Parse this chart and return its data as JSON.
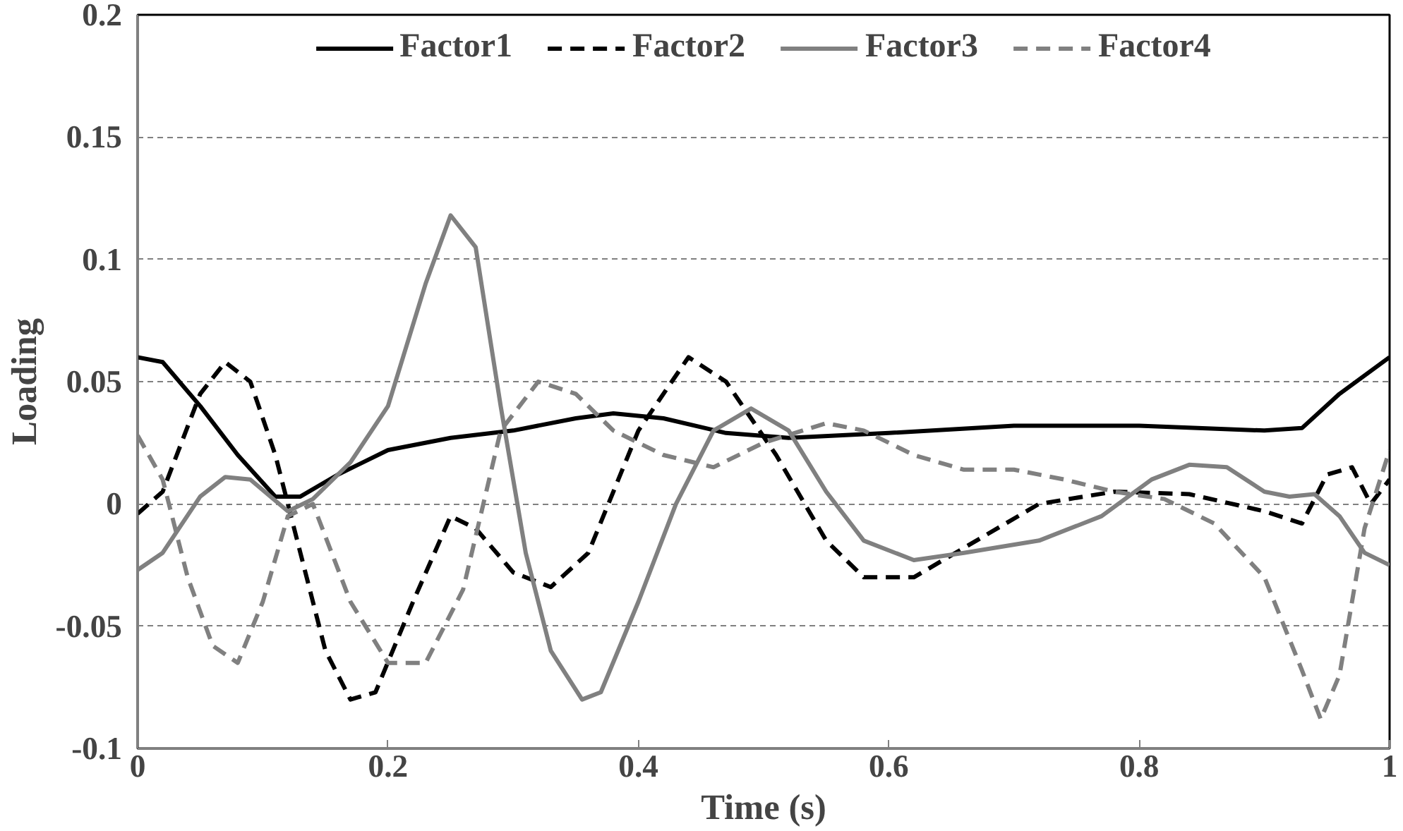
{
  "chart_data": {
    "type": "line",
    "xlabel": "Time (s)",
    "ylabel": "Loading",
    "xlim": [
      0,
      1
    ],
    "ylim": [
      -0.1,
      0.2
    ],
    "xticks": [
      0,
      0.2,
      0.4,
      0.6,
      0.8,
      1
    ],
    "yticks": [
      -0.1,
      -0.05,
      0,
      0.05,
      0.1,
      0.15,
      0.2
    ],
    "grid": "y",
    "legend": "top",
    "marker": "none",
    "series": [
      {
        "name": "Factor1",
        "color": "#000000",
        "line_style": "solid",
        "x": [
          0,
          0.02,
          0.05,
          0.08,
          0.11,
          0.13,
          0.16,
          0.2,
          0.25,
          0.3,
          0.35,
          0.38,
          0.42,
          0.47,
          0.52,
          0.6,
          0.7,
          0.8,
          0.9,
          0.93,
          0.96,
          1
        ],
        "values": [
          0.06,
          0.058,
          0.04,
          0.02,
          0.003,
          0.003,
          0.012,
          0.022,
          0.027,
          0.03,
          0.035,
          0.037,
          0.035,
          0.029,
          0.027,
          0.029,
          0.032,
          0.032,
          0.03,
          0.031,
          0.045,
          0.06
        ]
      },
      {
        "name": "Factor2",
        "color": "#000000",
        "line_style": "dashed",
        "x": [
          0,
          0.02,
          0.05,
          0.07,
          0.09,
          0.11,
          0.13,
          0.15,
          0.17,
          0.19,
          0.22,
          0.25,
          0.27,
          0.3,
          0.33,
          0.36,
          0.4,
          0.44,
          0.47,
          0.51,
          0.55,
          0.58,
          0.62,
          0.66,
          0.72,
          0.78,
          0.84,
          0.9,
          0.93,
          0.95,
          0.97,
          0.985,
          1
        ],
        "values": [
          -0.004,
          0.005,
          0.045,
          0.058,
          0.05,
          0.02,
          -0.02,
          -0.06,
          -0.08,
          -0.077,
          -0.04,
          -0.005,
          -0.01,
          -0.028,
          -0.034,
          -0.02,
          0.03,
          0.06,
          0.05,
          0.02,
          -0.015,
          -0.03,
          -0.03,
          -0.018,
          0.0,
          0.005,
          0.004,
          -0.003,
          -0.008,
          0.012,
          0.015,
          0.0,
          0.01
        ]
      },
      {
        "name": "Factor3",
        "color": "#808080",
        "line_style": "solid",
        "x": [
          0,
          0.02,
          0.05,
          0.07,
          0.09,
          0.12,
          0.14,
          0.17,
          0.2,
          0.23,
          0.25,
          0.27,
          0.29,
          0.31,
          0.33,
          0.355,
          0.37,
          0.4,
          0.43,
          0.46,
          0.49,
          0.52,
          0.55,
          0.58,
          0.62,
          0.66,
          0.72,
          0.77,
          0.81,
          0.84,
          0.87,
          0.9,
          0.92,
          0.94,
          0.96,
          0.98,
          1
        ],
        "values": [
          -0.027,
          -0.02,
          0.003,
          0.011,
          0.01,
          -0.003,
          0.002,
          0.017,
          0.04,
          0.09,
          0.118,
          0.105,
          0.04,
          -0.02,
          -0.06,
          -0.08,
          -0.077,
          -0.04,
          0.0,
          0.03,
          0.039,
          0.03,
          0.005,
          -0.015,
          -0.023,
          -0.02,
          -0.015,
          -0.005,
          0.01,
          0.016,
          0.015,
          0.005,
          0.003,
          0.004,
          -0.005,
          -0.02,
          -0.025
        ]
      },
      {
        "name": "Factor4",
        "color": "#808080",
        "line_style": "dashed",
        "x": [
          0,
          0.02,
          0.04,
          0.06,
          0.08,
          0.1,
          0.12,
          0.14,
          0.17,
          0.2,
          0.23,
          0.26,
          0.29,
          0.32,
          0.35,
          0.38,
          0.42,
          0.46,
          0.5,
          0.55,
          0.58,
          0.62,
          0.66,
          0.7,
          0.74,
          0.78,
          0.82,
          0.86,
          0.9,
          0.93,
          0.945,
          0.96,
          0.98,
          1
        ],
        "values": [
          0.028,
          0.01,
          -0.03,
          -0.058,
          -0.065,
          -0.04,
          -0.005,
          0.0,
          -0.04,
          -0.065,
          -0.065,
          -0.035,
          0.03,
          0.05,
          0.045,
          0.03,
          0.02,
          0.015,
          0.025,
          0.033,
          0.03,
          0.02,
          0.014,
          0.014,
          0.01,
          0.005,
          0.002,
          -0.008,
          -0.03,
          -0.068,
          -0.088,
          -0.07,
          -0.01,
          0.022
        ]
      }
    ]
  }
}
